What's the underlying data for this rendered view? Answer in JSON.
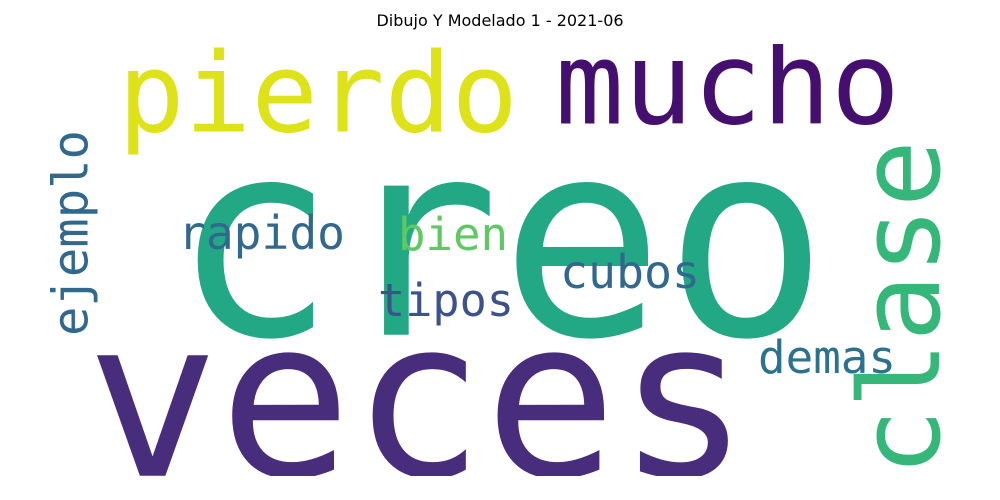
{
  "title": "Dibujo Y Modelado 1 - 2021-06",
  "words": [
    {
      "text": "creo",
      "color": "#22a884"
    },
    {
      "text": "veces",
      "color": "#472d7b"
    },
    {
      "text": "pierdo",
      "color": "#dde318"
    },
    {
      "text": "mucho",
      "color": "#440f6e"
    },
    {
      "text": "clase",
      "color": "#35b779"
    },
    {
      "text": "ejemplo",
      "color": "#31688e"
    },
    {
      "text": "rapido",
      "color": "#31688e"
    },
    {
      "text": "bien",
      "color": "#5ec962"
    },
    {
      "text": "cubos",
      "color": "#31688e"
    },
    {
      "text": "tipos",
      "color": "#3b528b"
    },
    {
      "text": "demas",
      "color": "#2c728e"
    }
  ]
}
